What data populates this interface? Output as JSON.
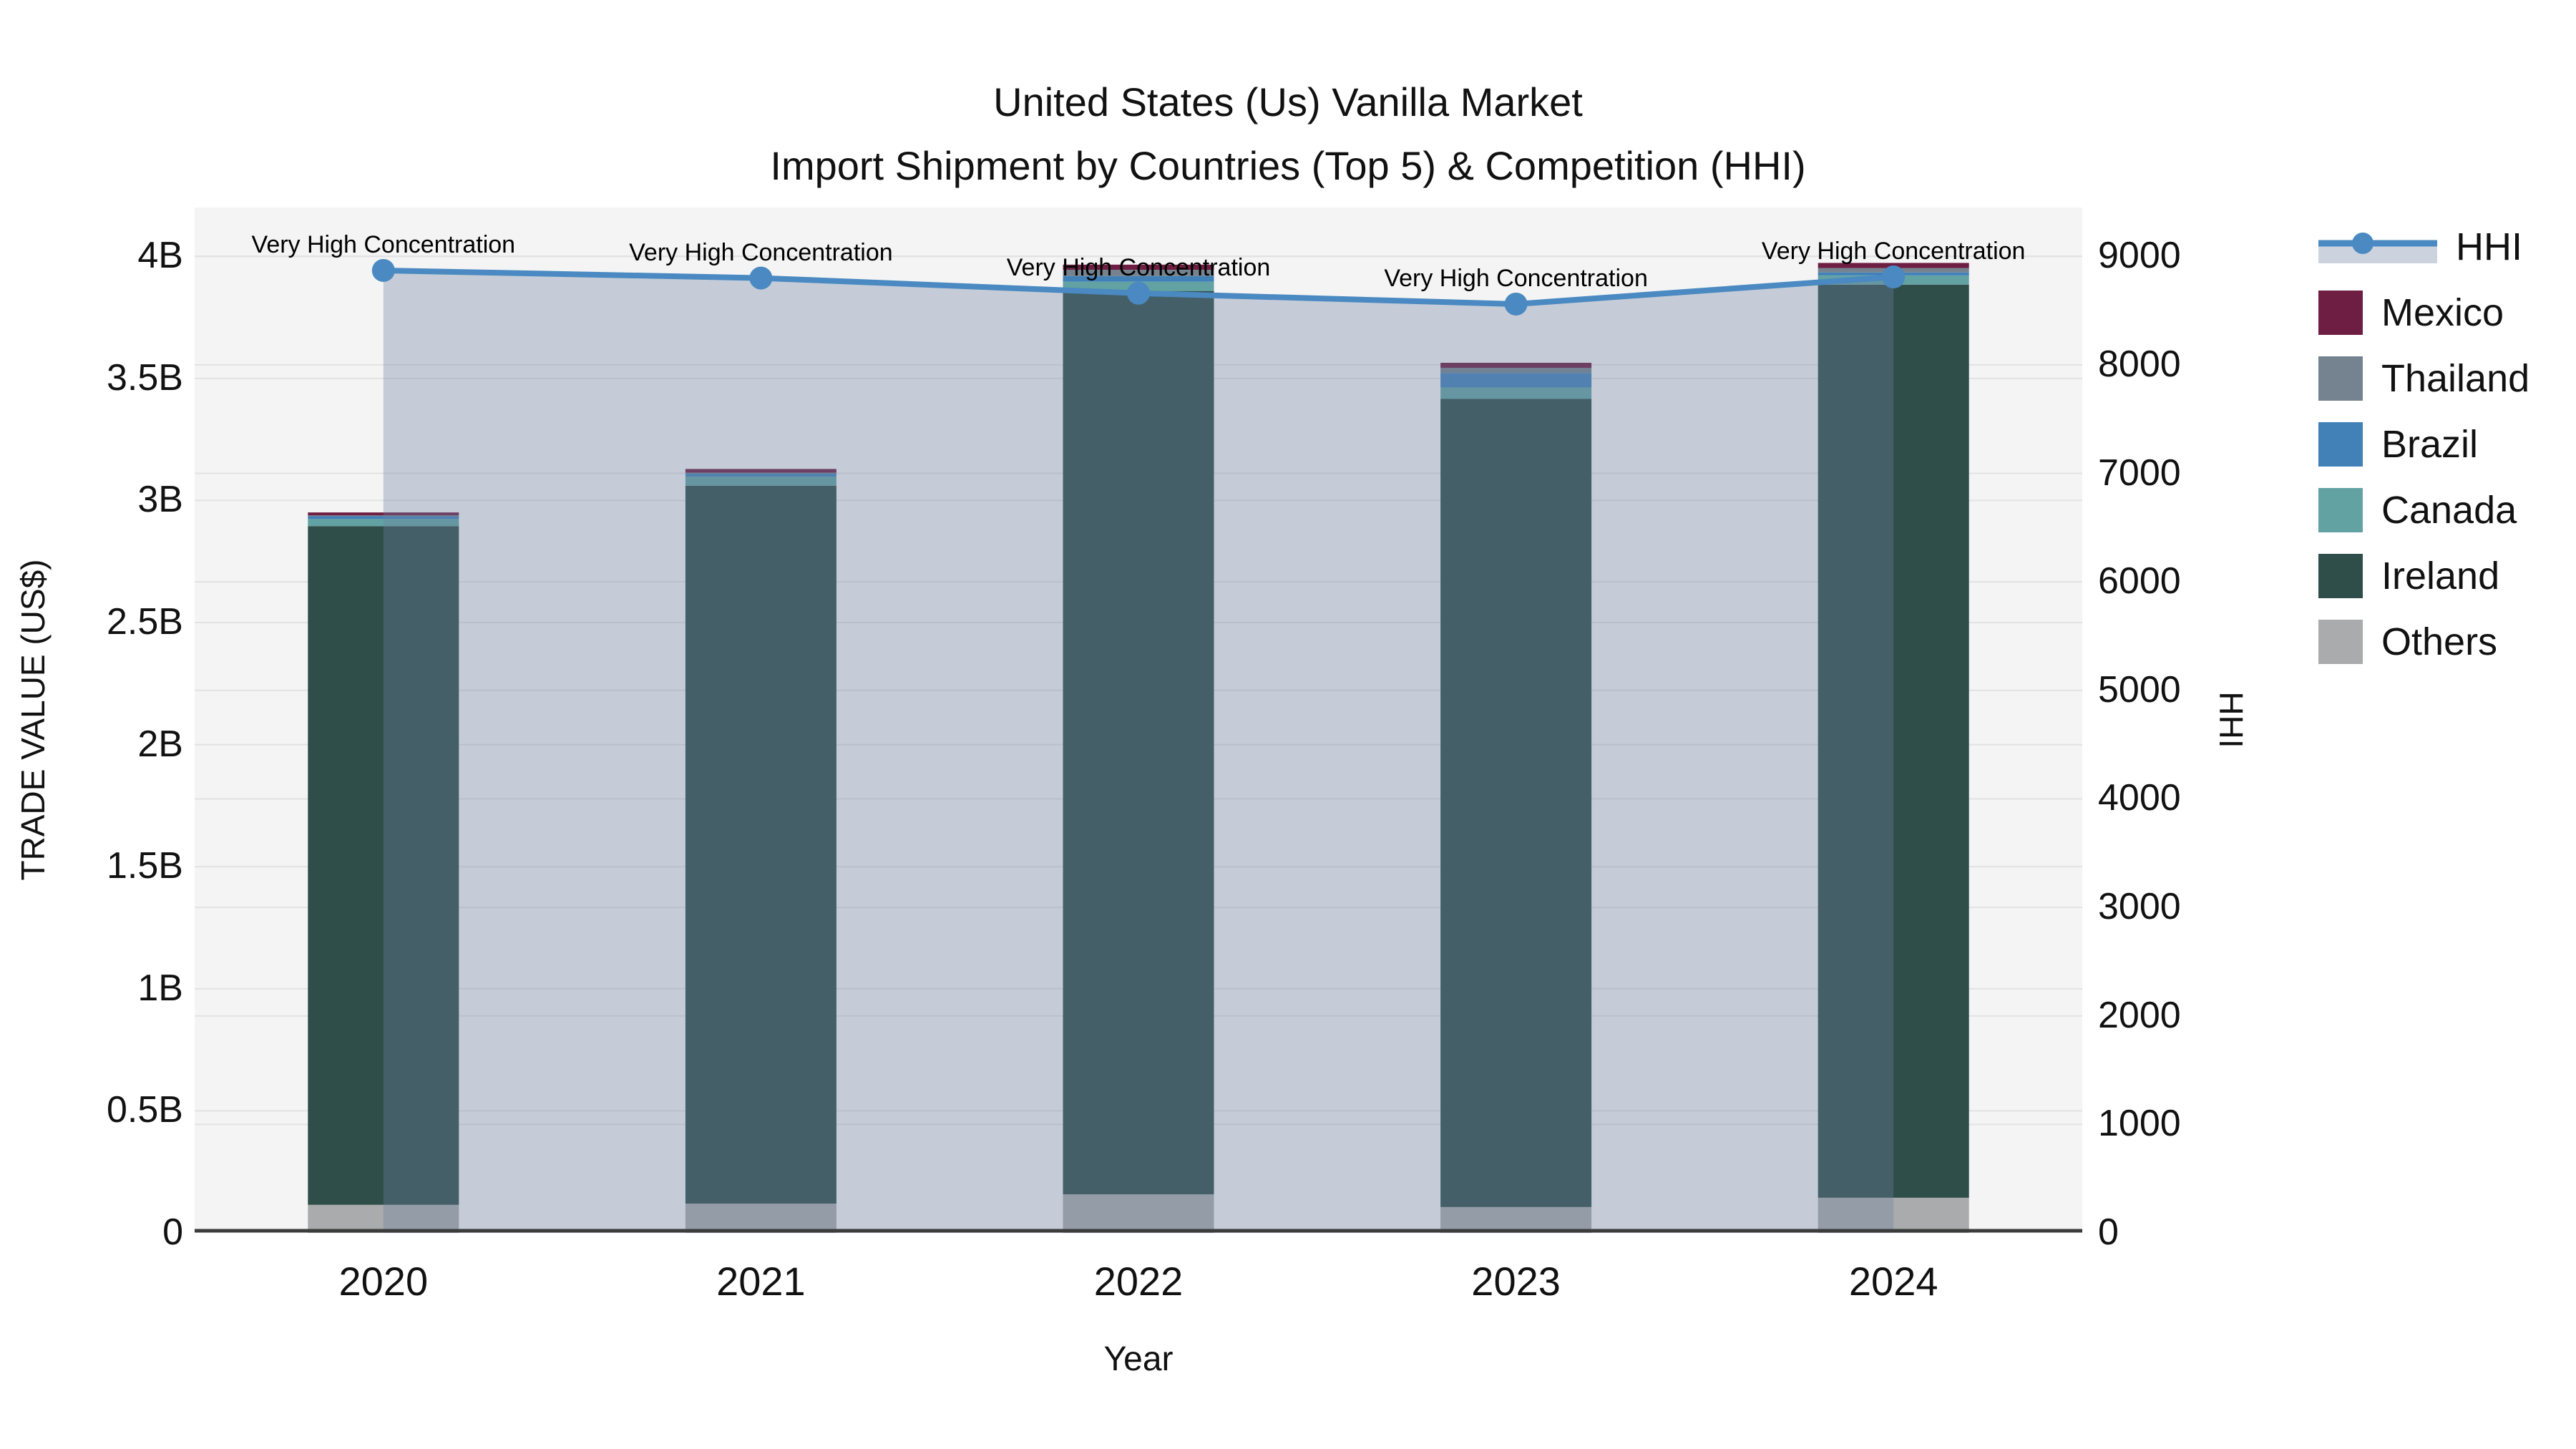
{
  "title": {
    "line1": "United States (Us) Vanilla Market",
    "line2": "Import Shipment by Countries (Top 5) & Competition (HHI)"
  },
  "axes": {
    "x_title": "Year",
    "y_left_title": "TRADE VALUE (US$)",
    "y_right_title": "HHI",
    "y_left_ticks": [
      {
        "label": "0",
        "value": 0
      },
      {
        "label": "0.5B",
        "value": 0.5
      },
      {
        "label": "1B",
        "value": 1
      },
      {
        "label": "1.5B",
        "value": 1.5
      },
      {
        "label": "2B",
        "value": 2
      },
      {
        "label": "2.5B",
        "value": 2.5
      },
      {
        "label": "3B",
        "value": 3
      },
      {
        "label": "3.5B",
        "value": 3.5
      },
      {
        "label": "4B",
        "value": 4
      }
    ],
    "y_right_ticks": [
      {
        "label": "0",
        "value": 0
      },
      {
        "label": "1000",
        "value": 1000
      },
      {
        "label": "2000",
        "value": 2000
      },
      {
        "label": "3000",
        "value": 3000
      },
      {
        "label": "4000",
        "value": 4000
      },
      {
        "label": "5000",
        "value": 5000
      },
      {
        "label": "6000",
        "value": 6000
      },
      {
        "label": "7000",
        "value": 7000
      },
      {
        "label": "8000",
        "value": 8000
      },
      {
        "label": "9000",
        "value": 9000
      }
    ]
  },
  "legend": {
    "items": [
      {
        "label": "HHI",
        "type": "line",
        "color": "#4a89c1"
      },
      {
        "label": "Mexico",
        "type": "swatch",
        "color": "#6e1e42"
      },
      {
        "label": "Thailand",
        "type": "swatch",
        "color": "#74838f"
      },
      {
        "label": "Brazil",
        "type": "swatch",
        "color": "#4181b8"
      },
      {
        "label": "Canada",
        "type": "swatch",
        "color": "#63a2a2"
      },
      {
        "label": "Ireland",
        "type": "swatch",
        "color": "#2f4d49"
      },
      {
        "label": "Others",
        "type": "swatch",
        "color": "#a9abac"
      }
    ]
  },
  "chart_data": {
    "type": "bar+line",
    "title_line1": "United States (Us) Vanilla Market",
    "title_line2": "Import Shipment by Countries (Top 5) & Competition (HHI)",
    "categories": [
      "2020",
      "2021",
      "2022",
      "2023",
      "2024"
    ],
    "bar_units": "billion US$",
    "stack_order_bottom_to_top": [
      "Others",
      "Ireland",
      "Canada",
      "Brazil",
      "Thailand",
      "Mexico"
    ],
    "series": [
      {
        "name": "Others",
        "color": "#a9abac",
        "values": [
          0.115,
          0.12,
          0.158,
          0.106,
          0.144
        ]
      },
      {
        "name": "Ireland",
        "color": "#2f4d49",
        "values": [
          2.78,
          2.94,
          3.7,
          3.31,
          3.74
        ]
      },
      {
        "name": "Canada",
        "color": "#63a2a2",
        "values": [
          0.029,
          0.038,
          0.038,
          0.047,
          0.038
        ]
      },
      {
        "name": "Brazil",
        "color": "#4181b8",
        "values": [
          0.012,
          0.012,
          0.023,
          0.059,
          0.012
        ]
      },
      {
        "name": "Thailand",
        "color": "#74838f",
        "values": [
          0.003,
          0.004,
          0.026,
          0.021,
          0.018
        ]
      },
      {
        "name": "Mexico",
        "color": "#6e1e42",
        "values": [
          0.012,
          0.015,
          0.021,
          0.021,
          0.021
        ]
      }
    ],
    "bar_totals_billions": [
      2.95,
      3.13,
      3.97,
      3.56,
      3.97
    ],
    "line_series": {
      "name": "HHI",
      "axis": "right",
      "color": "#4a89c1",
      "area_fill": "rgba(110,130,160,0.35)",
      "values": [
        8870,
        8800,
        8660,
        8560,
        8810
      ]
    },
    "annotations": [
      {
        "text": "Very High Concentration",
        "x": "2020"
      },
      {
        "text": "Very High Concentration",
        "x": "2021"
      },
      {
        "text": "Very High Concentration",
        "x": "2022"
      },
      {
        "text": "Very High Concentration",
        "x": "2023"
      },
      {
        "text": "Very High Concentration",
        "x": "2024"
      }
    ],
    "left_axis": {
      "title": "TRADE VALUE (US$)",
      "range_billions": [
        0,
        4.2
      ],
      "tick_step_billions": 0.5
    },
    "right_axis": {
      "title": "HHI",
      "range": [
        0,
        9450
      ],
      "tick_step": 1000
    },
    "x_axis": {
      "title": "Year"
    },
    "legend_position": "right",
    "grid": true,
    "plot_background": "#f4f4f4",
    "gridline_color": "#e2e2e2",
    "axis_line_color": "#3c3c3c"
  }
}
